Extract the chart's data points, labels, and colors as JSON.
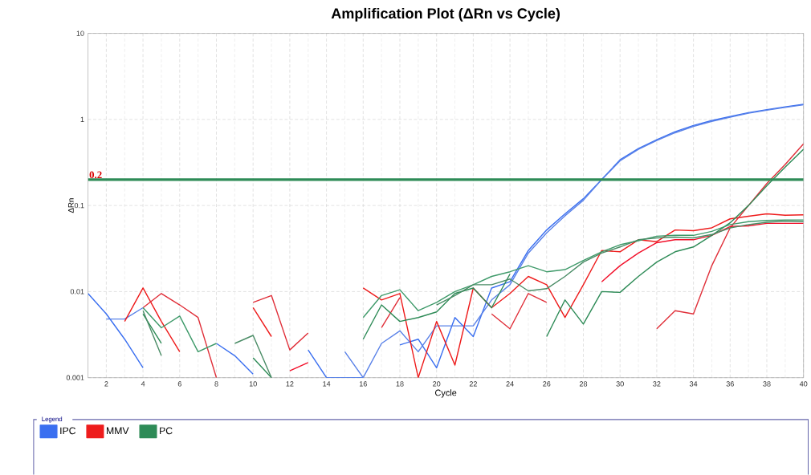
{
  "chart_data": {
    "type": "line",
    "title": "Amplification Plot (ΔRn vs Cycle)",
    "xlabel": "Cycle",
    "ylabel": "ΔRn",
    "legend_title": "Legend",
    "x": [
      1,
      2,
      3,
      4,
      5,
      6,
      7,
      8,
      9,
      10,
      11,
      12,
      13,
      14,
      15,
      16,
      17,
      18,
      19,
      20,
      21,
      22,
      23,
      24,
      25,
      26,
      27,
      28,
      29,
      30,
      31,
      32,
      33,
      34,
      35,
      36,
      37,
      38,
      39,
      40
    ],
    "series": [
      {
        "name": "IPC",
        "color": "#3a6ff0",
        "values": [
          0.0095,
          0.0055,
          0.0028,
          0.0013,
          null,
          null,
          null,
          0.0025,
          0.0018,
          0.0011,
          null,
          null,
          0.0021,
          0.001,
          0.001,
          0.001,
          null,
          0.0024,
          0.0028,
          0.0013,
          0.005,
          0.003,
          0.011,
          0.013,
          0.03,
          0.052,
          0.08,
          0.12,
          0.2,
          0.34,
          0.46,
          0.58,
          0.72,
          0.85,
          0.97,
          1.08,
          1.2,
          1.3,
          1.4,
          1.5
        ]
      },
      {
        "color": "#5a82e8",
        "values": [
          null,
          0.0048,
          0.0048,
          0.0065,
          null,
          null,
          null,
          null,
          null,
          null,
          null,
          null,
          null,
          null,
          0.002,
          0.001,
          0.0025,
          0.0035,
          0.002,
          0.004,
          0.004,
          0.004,
          0.008,
          0.012,
          0.028,
          0.048,
          0.076,
          0.115,
          0.2,
          0.33,
          0.45,
          0.57,
          0.7,
          0.83,
          0.95,
          1.06,
          1.18,
          1.28,
          1.38,
          1.48
        ]
      },
      {
        "name": "MMV",
        "color": "#ee1c1c",
        "values": [
          null,
          null,
          0.0045,
          0.011,
          0.0045,
          0.002,
          null,
          null,
          null,
          0.0065,
          0.003,
          null,
          null,
          null,
          null,
          0.011,
          0.008,
          0.0095,
          0.001,
          0.0045,
          0.0014,
          0.011,
          0.0065,
          0.0095,
          0.015,
          0.012,
          0.005,
          0.012,
          0.03,
          0.029,
          0.04,
          0.038,
          0.052,
          0.051,
          0.055,
          0.07,
          0.075,
          0.08,
          0.077,
          0.078
        ]
      },
      {
        "color": "#e0303a",
        "values": [
          null,
          null,
          null,
          0.0065,
          0.0095,
          0.007,
          0.005,
          0.001,
          null,
          0.0075,
          0.009,
          0.0021,
          0.0033,
          null,
          null,
          null,
          0.0038,
          0.0085,
          null,
          null,
          null,
          null,
          0.0055,
          0.0037,
          0.0095,
          0.0075,
          null,
          null,
          null,
          null,
          null,
          0.0037,
          0.006,
          0.0055,
          0.02,
          0.055,
          0.1,
          0.18,
          0.3,
          0.52
        ]
      },
      {
        "color": "#f2102a",
        "values": [
          null,
          null,
          null,
          null,
          null,
          null,
          null,
          null,
          null,
          null,
          null,
          0.0012,
          0.0015,
          null,
          null,
          null,
          null,
          null,
          null,
          null,
          null,
          null,
          null,
          null,
          null,
          null,
          null,
          null,
          0.013,
          0.02,
          0.028,
          0.037,
          0.04,
          0.04,
          0.045,
          0.057,
          0.058,
          0.062,
          0.062,
          0.062
        ]
      },
      {
        "name": "PC",
        "color": "#2e8b57",
        "values": [
          null,
          null,
          null,
          0.0055,
          0.0025,
          null,
          null,
          null,
          null,
          0.0017,
          0.001,
          null,
          null,
          null,
          null,
          0.0028,
          0.007,
          0.0045,
          0.005,
          0.0058,
          0.0095,
          0.011,
          0.0065,
          0.016,
          null,
          0.003,
          0.008,
          0.0042,
          0.01,
          0.0098,
          0.015,
          0.022,
          0.029,
          0.033,
          0.045,
          0.063,
          0.1,
          0.17,
          0.28,
          0.45
        ]
      },
      {
        "color": "#3f9a6a",
        "values": [
          null,
          null,
          null,
          0.0065,
          0.0038,
          0.0052,
          0.002,
          0.0025,
          null,
          null,
          null,
          null,
          null,
          null,
          null,
          0.005,
          0.009,
          0.0105,
          0.006,
          0.0075,
          0.01,
          0.012,
          0.015,
          0.017,
          0.02,
          0.017,
          0.018,
          0.023,
          0.029,
          0.035,
          0.039,
          0.044,
          0.045,
          0.045,
          0.05,
          0.06,
          0.065,
          0.067,
          0.068,
          0.068
        ]
      },
      {
        "color": "#4a8c66",
        "values": [
          null,
          null,
          null,
          0.006,
          0.0018,
          null,
          null,
          null,
          0.0025,
          0.0031,
          0.001,
          null,
          null,
          null,
          null,
          null,
          null,
          null,
          null,
          0.007,
          0.009,
          0.012,
          0.012,
          0.014,
          0.0102,
          0.0108,
          0.015,
          0.022,
          0.028,
          0.033,
          0.04,
          0.042,
          0.043,
          0.042,
          0.046,
          0.055,
          0.06,
          0.064,
          0.066,
          0.065
        ]
      }
    ],
    "xlim": [
      1,
      40
    ],
    "xticks": [
      2,
      4,
      6,
      8,
      10,
      12,
      14,
      16,
      18,
      20,
      22,
      24,
      26,
      28,
      30,
      32,
      34,
      36,
      38,
      40
    ],
    "ylim": [
      0.001,
      10
    ],
    "yticks": [
      {
        "value": 0.001,
        "label": "0.001"
      },
      {
        "value": 0.01,
        "label": "0.01"
      },
      {
        "value": 0.1,
        "label": "0.1"
      },
      {
        "value": 1,
        "label": "1"
      },
      {
        "value": 10,
        "label": "10"
      }
    ],
    "log": "y",
    "grid": true,
    "legend": "bottom",
    "marker": "none",
    "line_style": "solid",
    "ref_lines": [
      {
        "axis": "y",
        "value": 0.2,
        "label": "0.2",
        "color": "#2e8b57"
      }
    ]
  }
}
